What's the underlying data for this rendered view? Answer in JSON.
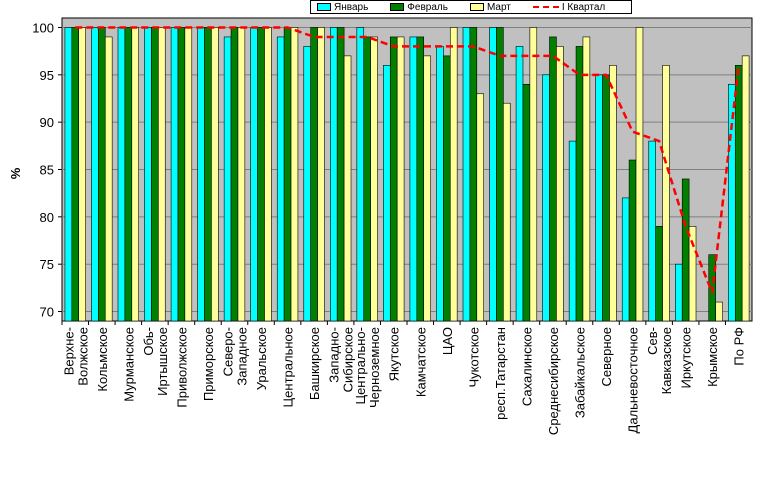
{
  "colors": {
    "background": "#ffffff",
    "plot_bg": "#c0c0c0",
    "grid": "#808080",
    "jan": "#00ffff",
    "feb": "#007f00",
    "mar": "#ffff99",
    "quarter": "#ff0000"
  },
  "chart_data": {
    "type": "bar",
    "title": "",
    "xlabel": "",
    "ylabel": "%",
    "ylim": [
      69,
      101
    ],
    "yticks": [
      70,
      75,
      80,
      85,
      90,
      95,
      100
    ],
    "grid": true,
    "legend_position": "top",
    "categories": [
      "Верхне-Волжское",
      "Кольмское",
      "Мурманское",
      "Обь-Иртышское",
      "Приволжское",
      "Приморское",
      "Северо-Западное",
      "Уральское",
      "Центральное",
      "Башкирское",
      "Западно-Сибирское",
      "Центрально-Черноземное",
      "Якутское",
      "Камчатское",
      "ЦАО",
      "Чукотское",
      "респ.Татарстан",
      "Сахалинское",
      "Среднесибирское",
      "Забайкальское",
      "Северное",
      "Дальневосточное",
      "Сев-Кавказское",
      "Иркутское",
      "Крымское",
      "По РФ"
    ],
    "series": [
      {
        "name": "Январь",
        "type": "bar",
        "values": [
          100,
          100,
          100,
          100,
          100,
          100,
          99,
          100,
          99,
          98,
          100,
          100,
          96,
          99,
          98,
          100,
          100,
          98,
          95,
          88,
          95,
          82,
          88,
          75,
          69,
          94
        ]
      },
      {
        "name": "Февраль",
        "type": "bar",
        "values": [
          100,
          100,
          100,
          100,
          100,
          100,
          100,
          100,
          100,
          100,
          100,
          99,
          99,
          99,
          97,
          100,
          100,
          94,
          99,
          98,
          95,
          86,
          79,
          84,
          76,
          96
        ]
      },
      {
        "name": "Март",
        "type": "bar",
        "values": [
          100,
          99,
          100,
          100,
          100,
          100,
          100,
          100,
          100,
          100,
          97,
          99,
          99,
          97,
          100,
          93,
          92,
          100,
          98,
          99,
          96,
          100,
          96,
          79,
          71,
          97
        ]
      },
      {
        "name": "I Квартал",
        "type": "line",
        "values": [
          100,
          100,
          100,
          100,
          100,
          100,
          100,
          100,
          100,
          99,
          99,
          99,
          98,
          98,
          98,
          98,
          97,
          97,
          97,
          95,
          95,
          89,
          88,
          79,
          72,
          96
        ]
      }
    ]
  }
}
